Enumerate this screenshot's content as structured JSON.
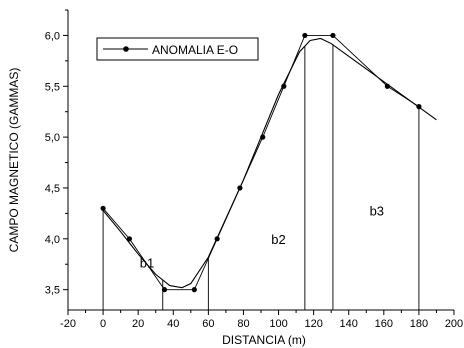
{
  "chart_data": {
    "type": "line",
    "xlabel": "DISTANCIA (m)",
    "ylabel": "CAMPO MAGNETICO (GAMMAS)",
    "xlim": [
      -20,
      200
    ],
    "ylim": [
      3.3,
      6.25
    ],
    "xticks": [
      -20,
      0,
      20,
      40,
      60,
      80,
      100,
      120,
      140,
      160,
      180,
      200
    ],
    "yticks": [
      3.5,
      4.0,
      4.5,
      5.0,
      5.5,
      6.0
    ],
    "xtick_labels": [
      "-20",
      "0",
      "20",
      "40",
      "60",
      "80",
      "100",
      "120",
      "140",
      "160",
      "180",
      "200"
    ],
    "ytick_labels": [
      "3,5",
      "4,0",
      "4,5",
      "5,0",
      "5,5",
      "6,0"
    ],
    "legend": {
      "label": "ANOMALIA E-O",
      "placement": "top-left"
    },
    "series": [
      {
        "name": "ANOMALIA E-O",
        "x": [
          0,
          15,
          35,
          52,
          65,
          78,
          91,
          103,
          115,
          131,
          162,
          180
        ],
        "y": [
          4.3,
          4.0,
          3.5,
          3.5,
          4.0,
          4.5,
          5.0,
          5.5,
          6.0,
          6.0,
          5.5,
          5.3
        ]
      }
    ],
    "fit_curve": {
      "x": [
        0,
        10,
        20,
        30,
        38,
        45,
        50,
        60,
        80,
        100,
        112,
        118,
        124,
        130,
        150,
        170,
        190
      ],
      "y": [
        4.28,
        4.07,
        3.85,
        3.65,
        3.54,
        3.52,
        3.56,
        3.82,
        4.58,
        5.42,
        5.84,
        5.95,
        5.97,
        5.92,
        5.67,
        5.42,
        5.17
      ]
    },
    "vertical_lines_x": [
      0,
      34,
      60,
      115,
      131,
      180
    ],
    "annotations": [
      {
        "text": "b1",
        "x": 25,
        "y": 3.72
      },
      {
        "text": "b2",
        "x": 100,
        "y": 3.95
      },
      {
        "text": "b3",
        "x": 156,
        "y": 4.23
      }
    ]
  }
}
